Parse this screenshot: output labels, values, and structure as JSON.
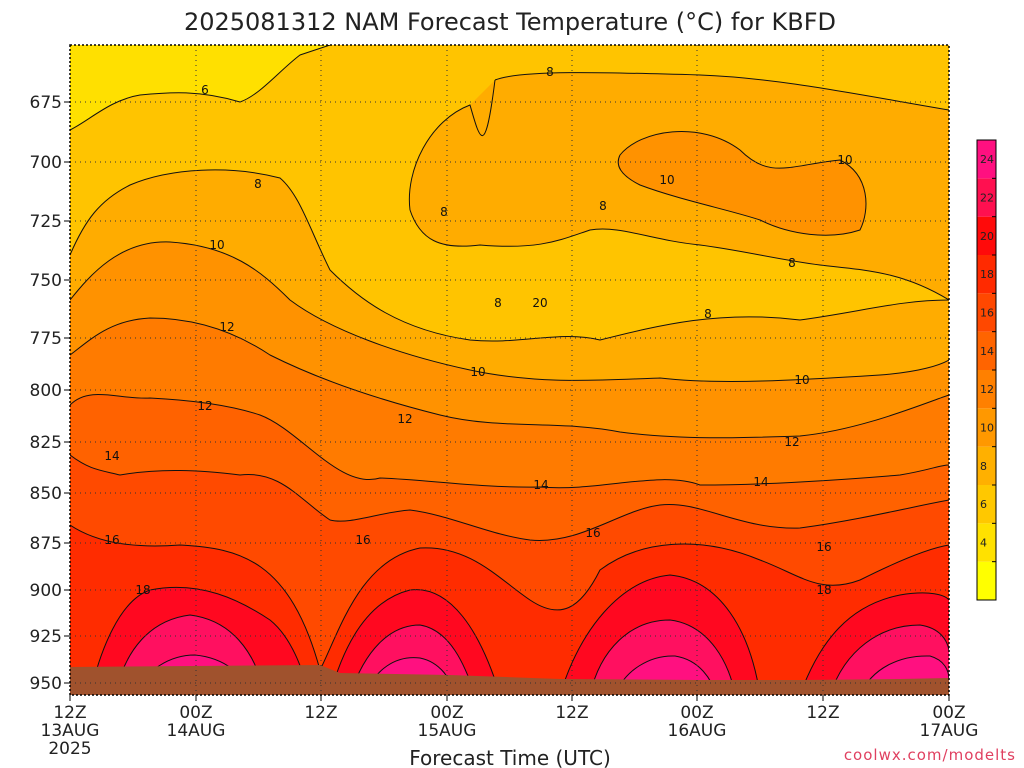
{
  "chart_data": {
    "type": "heatmap",
    "title": "2025081312 NAM Forecast Temperature (°C) for KBFD",
    "xlabel": "Forecast Time (UTC)",
    "ylabel": "",
    "credit": "coolwx.com/modelts",
    "y_axis": {
      "scale": "pressure (hPa), inverted",
      "ticks": [
        "675",
        "700",
        "725",
        "750",
        "775",
        "800",
        "825",
        "850",
        "875",
        "900",
        "925",
        "950"
      ]
    },
    "x_axis": {
      "ticks": [
        {
          "line1": "12Z",
          "line2": "13AUG",
          "line3": "2025"
        },
        {
          "line1": "00Z",
          "line2": "14AUG",
          "line3": ""
        },
        {
          "line1": "12Z",
          "line2": "",
          "line3": ""
        },
        {
          "line1": "00Z",
          "line2": "15AUG",
          "line3": ""
        },
        {
          "line1": "12Z",
          "line2": "",
          "line3": ""
        },
        {
          "line1": "00Z",
          "line2": "16AUG",
          "line3": ""
        },
        {
          "line1": "12Z",
          "line2": "",
          "line3": ""
        },
        {
          "line1": "00Z",
          "line2": "17AUG",
          "line3": ""
        }
      ]
    },
    "colorbar": {
      "ticks": [
        "4",
        "6",
        "8",
        "10",
        "12",
        "14",
        "16",
        "18",
        "20",
        "22",
        "24"
      ],
      "levels": [
        2,
        4,
        6,
        8,
        10,
        12,
        14,
        16,
        18,
        20,
        22,
        24,
        26
      ],
      "colors": [
        "#ffff00",
        "#ffe100",
        "#ffc800",
        "#ffb000",
        "#ff9800",
        "#ff8000",
        "#ff6400",
        "#ff4800",
        "#ff2a00",
        "#ff0a0a",
        "#ff1050",
        "#ff1080"
      ]
    },
    "contour_labels": [
      "6",
      "8",
      "8",
      "8",
      "8",
      "8",
      "8",
      "8",
      "10",
      "10",
      "10",
      "10",
      "10",
      "12",
      "12",
      "12",
      "12",
      "14",
      "14",
      "14",
      "16",
      "16",
      "16",
      "16",
      "18",
      "18",
      "20"
    ],
    "ground_color": "#a0522d"
  }
}
